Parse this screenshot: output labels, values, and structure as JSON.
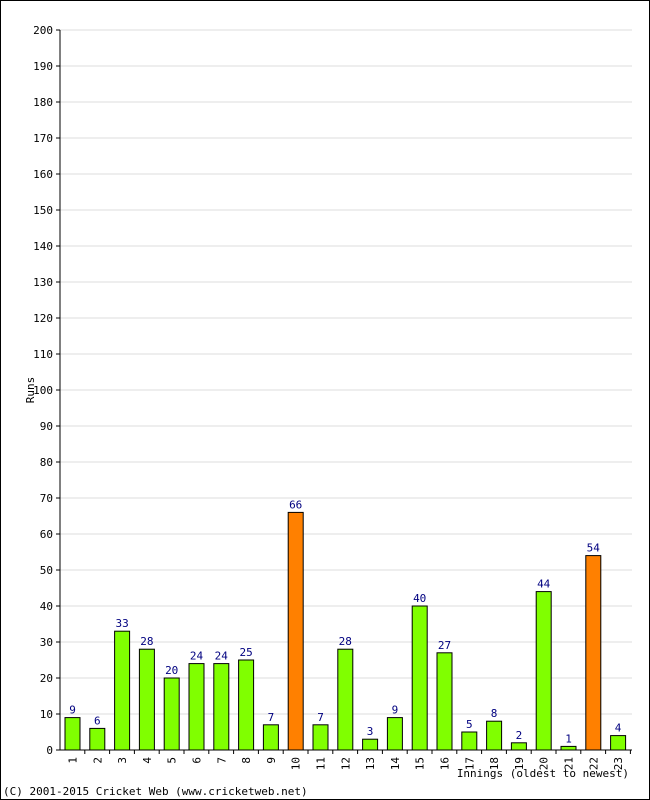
{
  "chart_data": {
    "type": "bar",
    "ylabel": "Runs",
    "xlabel": "Innings (oldest to newest)",
    "ylim": [
      0,
      200
    ],
    "yticks": [
      0,
      10,
      20,
      30,
      40,
      50,
      60,
      70,
      80,
      90,
      100,
      110,
      120,
      130,
      140,
      150,
      160,
      170,
      180,
      190,
      200
    ],
    "categories": [
      "1",
      "2",
      "3",
      "4",
      "5",
      "6",
      "7",
      "8",
      "9",
      "10",
      "11",
      "12",
      "13",
      "14",
      "15",
      "16",
      "17",
      "18",
      "19",
      "20",
      "21",
      "22",
      "23"
    ],
    "values": [
      9,
      6,
      33,
      28,
      20,
      24,
      24,
      25,
      7,
      66,
      7,
      28,
      3,
      9,
      40,
      27,
      5,
      8,
      2,
      44,
      1,
      54,
      4
    ],
    "highlighted": [
      10,
      22
    ],
    "grid": true,
    "colors": {
      "bar": "#80ff00",
      "highlight": "#ff8000",
      "bar_edge": "#000000",
      "value_label": "#000080",
      "grid": "#dddddd"
    }
  },
  "footer": {
    "copyright": "(C) 2001-2015 Cricket Web (www.cricketweb.net)"
  }
}
